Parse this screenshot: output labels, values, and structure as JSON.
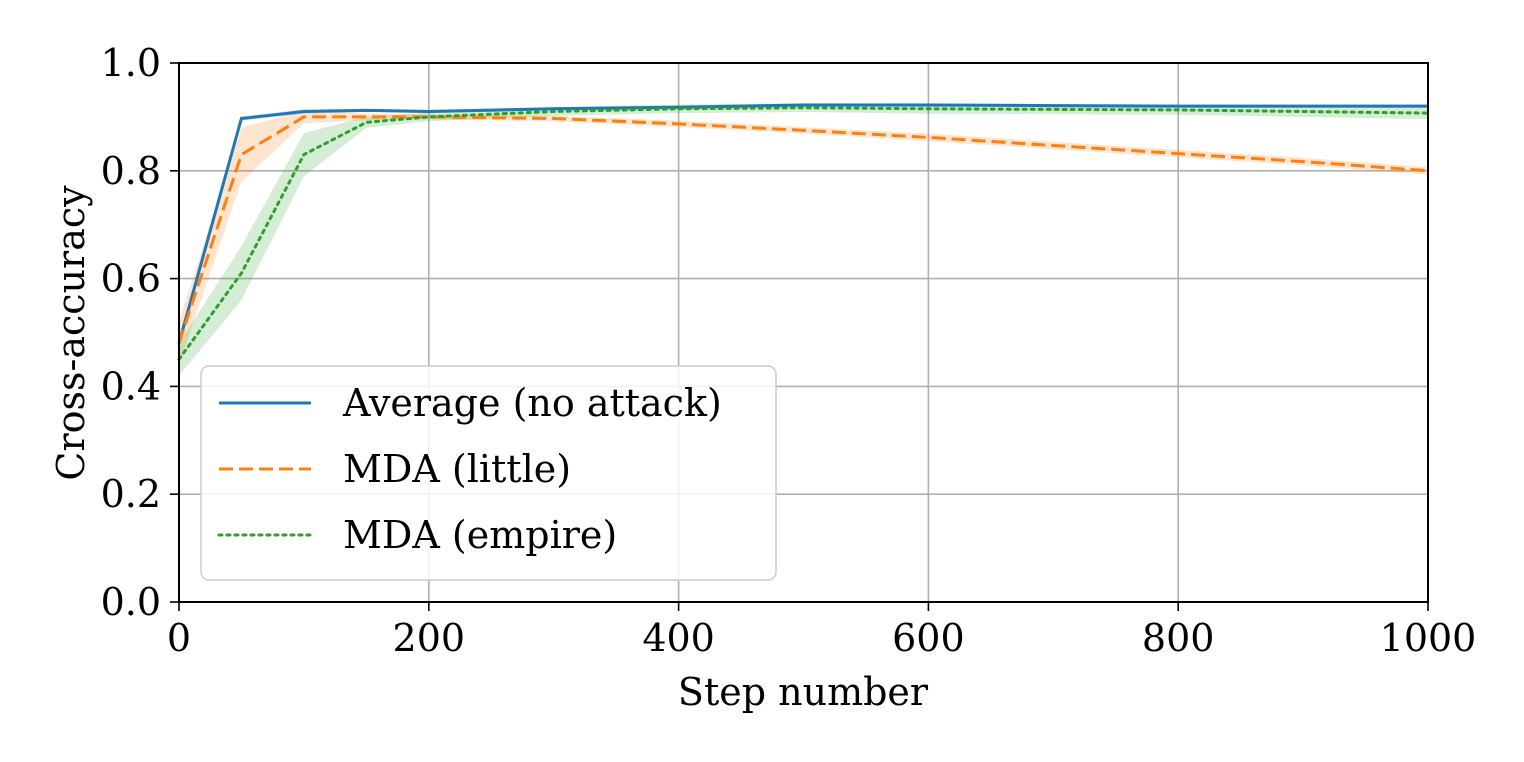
{
  "chart_data": {
    "type": "line",
    "title": "",
    "xlabel": "Step number",
    "ylabel": "Cross-accuracy",
    "xlim": [
      0,
      1000
    ],
    "ylim": [
      0.0,
      1.0
    ],
    "grid": true,
    "legend_position": "lower-left",
    "x_ticks": [
      0,
      200,
      400,
      600,
      800,
      1000
    ],
    "x_tick_labels": [
      "0",
      "200",
      "400",
      "600",
      "800",
      "1000"
    ],
    "y_ticks": [
      0.0,
      0.2,
      0.4,
      0.6,
      0.8,
      1.0
    ],
    "y_tick_labels": [
      "0.0",
      "0.2",
      "0.4",
      "0.6",
      "0.8",
      "1.0"
    ],
    "series": [
      {
        "name": "Average (no attack)",
        "color": "#1f77b4",
        "style": "solid",
        "x": [
          0,
          50,
          100,
          150,
          200,
          300,
          400,
          500,
          600,
          700,
          800,
          900,
          1000
        ],
        "y": [
          0.48,
          0.897,
          0.91,
          0.912,
          0.91,
          0.915,
          0.918,
          0.922,
          0.922,
          0.921,
          0.92,
          0.92,
          0.92
        ],
        "lower": [
          0.47,
          0.893,
          0.906,
          0.909,
          0.907,
          0.912,
          0.915,
          0.919,
          0.919,
          0.918,
          0.917,
          0.917,
          0.917
        ],
        "upper": [
          0.49,
          0.901,
          0.914,
          0.915,
          0.913,
          0.918,
          0.921,
          0.925,
          0.925,
          0.924,
          0.923,
          0.923,
          0.923
        ]
      },
      {
        "name": "MDA (little)",
        "color": "#ff7f0e",
        "style": "dashed",
        "x": [
          0,
          50,
          100,
          150,
          200,
          300,
          400,
          500,
          600,
          700,
          800,
          900,
          1000
        ],
        "y": [
          0.48,
          0.83,
          0.9,
          0.9,
          0.9,
          0.897,
          0.887,
          0.875,
          0.862,
          0.847,
          0.832,
          0.817,
          0.8
        ],
        "lower": [
          0.44,
          0.78,
          0.888,
          0.894,
          0.895,
          0.892,
          0.881,
          0.869,
          0.855,
          0.84,
          0.825,
          0.81,
          0.793
        ],
        "upper": [
          0.52,
          0.88,
          0.912,
          0.906,
          0.905,
          0.902,
          0.893,
          0.881,
          0.869,
          0.854,
          0.839,
          0.824,
          0.807
        ]
      },
      {
        "name": "MDA (empire)",
        "color": "#2ca02c",
        "style": "dotted",
        "x": [
          0,
          50,
          100,
          150,
          200,
          300,
          400,
          500,
          600,
          700,
          800,
          900,
          1000
        ],
        "y": [
          0.45,
          0.61,
          0.83,
          0.89,
          0.9,
          0.91,
          0.915,
          0.917,
          0.915,
          0.914,
          0.913,
          0.91,
          0.907
        ],
        "lower": [
          0.42,
          0.56,
          0.79,
          0.88,
          0.892,
          0.902,
          0.907,
          0.909,
          0.906,
          0.905,
          0.904,
          0.9,
          0.896
        ],
        "upper": [
          0.48,
          0.66,
          0.87,
          0.9,
          0.908,
          0.918,
          0.923,
          0.925,
          0.924,
          0.923,
          0.922,
          0.92,
          0.918
        ]
      }
    ]
  }
}
